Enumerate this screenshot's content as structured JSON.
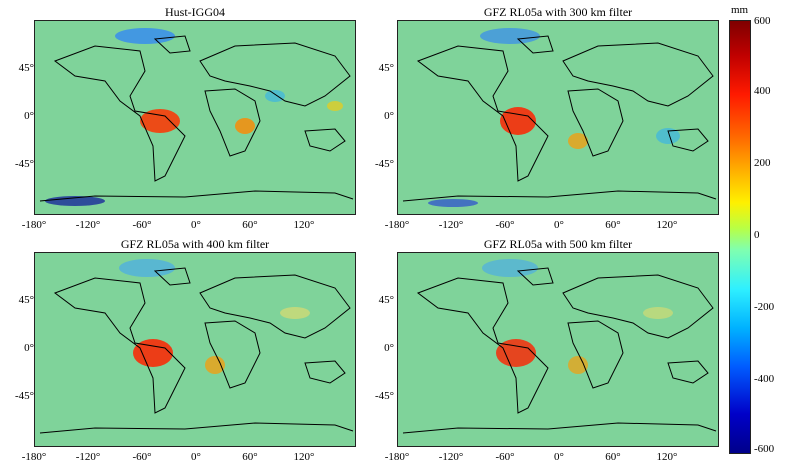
{
  "panels": [
    {
      "title": "Hust-IGG04"
    },
    {
      "title": "GFZ RL05a with 300 km filter"
    },
    {
      "title": "GFZ RL05a with 400 km filter"
    },
    {
      "title": "GFZ RL05a with 500 km filter"
    }
  ],
  "lat_ticks": [
    "45°",
    "0°",
    "-45°"
  ],
  "lon_ticks": [
    "-180°",
    "-120°",
    "-60°",
    "0°",
    "60°",
    "120°"
  ],
  "colorbar": {
    "unit": "mm",
    "ticks": [
      "600",
      "400",
      "200",
      "0",
      "-200",
      "-400",
      "-600"
    ],
    "range": [
      -600,
      600
    ],
    "colormap": "jet"
  }
}
